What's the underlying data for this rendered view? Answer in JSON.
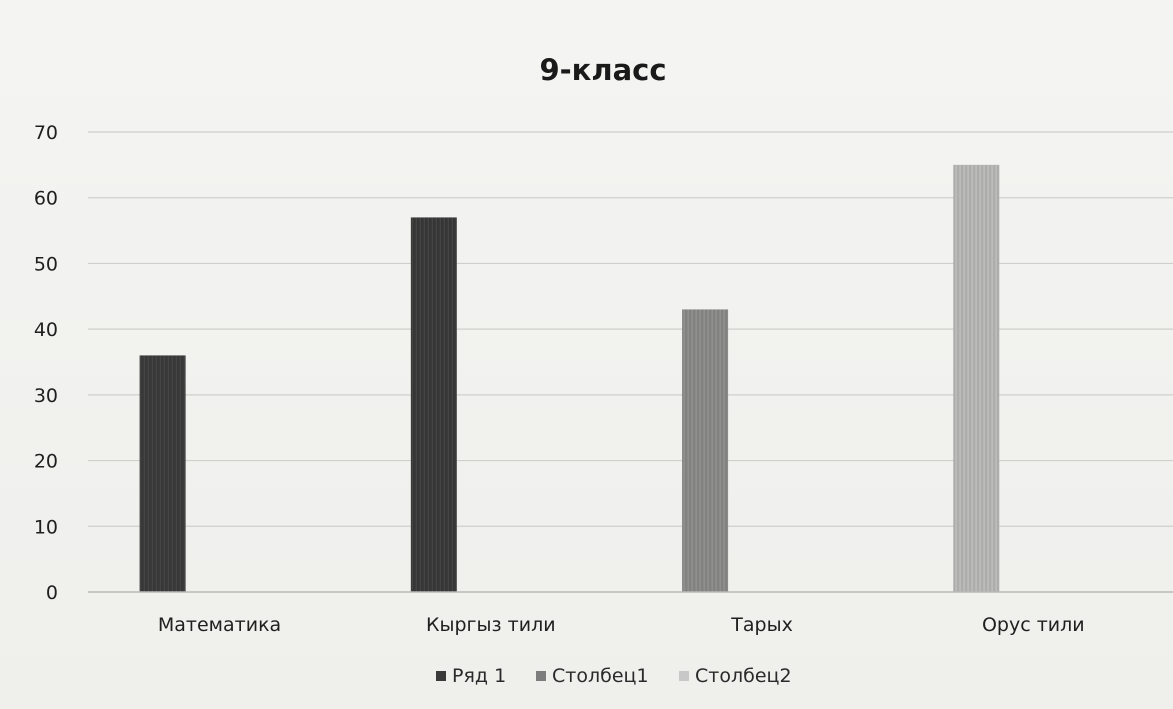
{
  "chart_data": {
    "type": "bar",
    "title": "9-класс",
    "xlabel": "",
    "ylabel": "",
    "categories": [
      "Математика",
      "Кыргыз тили",
      "Тарых",
      "Орус тили"
    ],
    "series": [
      {
        "name": "Ряд 1",
        "values": [
          36,
          57,
          43,
          65
        ],
        "color": "#3a3a3a"
      },
      {
        "name": "Столбец1",
        "values": [
          null,
          null,
          null,
          null
        ],
        "color": "#7d7d7d"
      },
      {
        "name": "Столбец2",
        "values": [
          null,
          null,
          null,
          null
        ],
        "color": "#c8c8c8"
      }
    ],
    "bar_colors": [
      "#3b3b3b",
      "#3a3a3a",
      "#8a8a88",
      "#b8b8b6"
    ],
    "ylim": [
      0,
      70
    ],
    "yticks": [
      "0",
      "10",
      "20",
      "30",
      "40",
      "50",
      "60",
      "70"
    ],
    "grid": true,
    "legend": "bottom-center"
  }
}
